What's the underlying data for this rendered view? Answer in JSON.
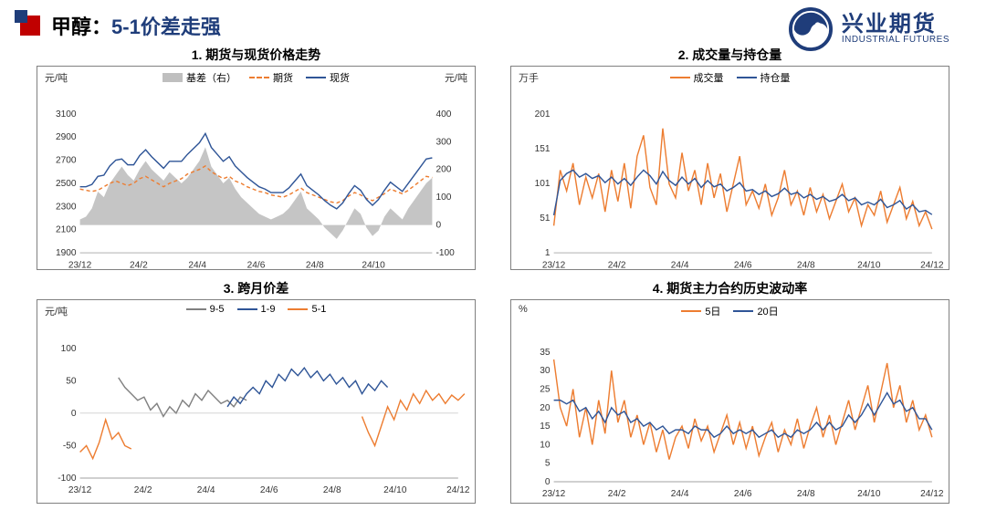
{
  "header": {
    "title_prefix": "甲醇：",
    "title_main": "5-1价差走强",
    "logo_cn": "兴业期货",
    "logo_en": "INDUSTRIAL FUTURES"
  },
  "colors": {
    "red": "#c00000",
    "navy": "#1f3d7a",
    "orange": "#ed7d31",
    "blue": "#2f5597",
    "gray_area": "#bfbfbf",
    "gray_line": "#808080",
    "border": "#808080",
    "text": "#333333"
  },
  "x_axis": {
    "labels": [
      "23/12",
      "24/2",
      "24/4",
      "24/6",
      "24/8",
      "24/10",
      "24/12"
    ],
    "full_len": 60
  },
  "chart1": {
    "title": "1. 期货与现货价格走势",
    "unit_left": "元/吨",
    "unit_right": "元/吨",
    "legend": [
      {
        "type": "area",
        "label": "基差（右）",
        "color": "#bfbfbf"
      },
      {
        "type": "dash",
        "label": "期货",
        "color": "#ed7d31"
      },
      {
        "type": "line",
        "label": "现货",
        "color": "#2f5597"
      }
    ],
    "y_left": {
      "min": 1900,
      "max": 3100,
      "step": 200
    },
    "y_right": {
      "min": -100,
      "max": 400,
      "step": 100
    },
    "series_basis_right": [
      20,
      30,
      60,
      120,
      100,
      150,
      180,
      210,
      180,
      160,
      200,
      230,
      200,
      180,
      160,
      190,
      170,
      150,
      170,
      200,
      230,
      280,
      210,
      180,
      150,
      170,
      130,
      100,
      80,
      60,
      40,
      30,
      20,
      30,
      40,
      60,
      90,
      120,
      60,
      40,
      20,
      -10,
      -30,
      -50,
      -20,
      20,
      60,
      40,
      -10,
      -40,
      -20,
      30,
      60,
      40,
      20,
      60,
      90,
      120,
      150,
      170
    ],
    "series_futures_left": [
      2450,
      2440,
      2430,
      2440,
      2470,
      2500,
      2520,
      2500,
      2480,
      2500,
      2540,
      2560,
      2530,
      2500,
      2470,
      2500,
      2520,
      2540,
      2580,
      2600,
      2620,
      2650,
      2600,
      2570,
      2540,
      2560,
      2520,
      2500,
      2470,
      2450,
      2430,
      2420,
      2400,
      2390,
      2380,
      2400,
      2430,
      2460,
      2420,
      2400,
      2380,
      2360,
      2340,
      2330,
      2350,
      2390,
      2420,
      2400,
      2370,
      2350,
      2380,
      2410,
      2450,
      2430,
      2410,
      2440,
      2480,
      2520,
      2560,
      2550
    ],
    "series_spot_left": [
      2470,
      2470,
      2490,
      2560,
      2570,
      2650,
      2700,
      2710,
      2660,
      2660,
      2740,
      2790,
      2730,
      2680,
      2630,
      2690,
      2690,
      2690,
      2750,
      2800,
      2850,
      2930,
      2810,
      2750,
      2690,
      2730,
      2650,
      2600,
      2550,
      2510,
      2470,
      2450,
      2420,
      2420,
      2420,
      2460,
      2520,
      2580,
      2480,
      2440,
      2400,
      2350,
      2310,
      2280,
      2330,
      2410,
      2480,
      2440,
      2360,
      2310,
      2360,
      2440,
      2510,
      2470,
      2430,
      2500,
      2570,
      2640,
      2710,
      2720
    ]
  },
  "chart2": {
    "title": "2. 成交量与持仓量",
    "unit_left": "万手",
    "legend": [
      {
        "type": "line",
        "label": "成交量",
        "color": "#ed7d31"
      },
      {
        "type": "line",
        "label": "持仓量",
        "color": "#2f5597"
      }
    ],
    "y_left": {
      "min": 1,
      "max": 201,
      "step": 50
    },
    "series_vol": [
      40,
      120,
      90,
      130,
      70,
      110,
      80,
      115,
      60,
      120,
      75,
      130,
      65,
      140,
      170,
      95,
      70,
      180,
      100,
      80,
      145,
      90,
      120,
      70,
      130,
      80,
      115,
      60,
      100,
      140,
      70,
      90,
      65,
      100,
      55,
      80,
      120,
      70,
      90,
      55,
      95,
      60,
      85,
      50,
      75,
      100,
      60,
      80,
      40,
      70,
      55,
      90,
      45,
      70,
      95,
      50,
      75,
      40,
      60,
      35
    ],
    "series_oi": [
      55,
      105,
      115,
      120,
      110,
      115,
      108,
      112,
      102,
      110,
      100,
      108,
      98,
      110,
      120,
      112,
      100,
      118,
      105,
      98,
      110,
      100,
      108,
      95,
      105,
      96,
      100,
      90,
      95,
      102,
      90,
      92,
      85,
      90,
      82,
      86,
      94,
      85,
      88,
      80,
      85,
      78,
      82,
      75,
      78,
      85,
      76,
      80,
      70,
      74,
      70,
      78,
      66,
      70,
      76,
      64,
      70,
      60,
      62,
      56
    ]
  },
  "chart3": {
    "title": "3. 跨月价差",
    "unit_left": "元/吨",
    "legend": [
      {
        "type": "line",
        "label": "9-5",
        "color": "#808080"
      },
      {
        "type": "line",
        "label": "1-9",
        "color": "#2f5597"
      },
      {
        "type": "line",
        "label": "5-1",
        "color": "#ed7d31"
      }
    ],
    "y_left": {
      "min": -100,
      "max": 100,
      "step": 50
    },
    "series_51": {
      "start": 0,
      "end": 8,
      "values": [
        -60,
        -50,
        -70,
        -45,
        -10,
        -40,
        -30,
        -50,
        -55
      ]
    },
    "series_51b": {
      "start": 44,
      "end": 60,
      "values": [
        -5,
        -30,
        -50,
        -20,
        10,
        -10,
        20,
        5,
        30,
        15,
        35,
        20,
        30,
        15,
        28,
        20,
        30
      ]
    },
    "series_95": {
      "start": 6,
      "end": 26,
      "values": [
        55,
        40,
        30,
        20,
        25,
        5,
        15,
        -5,
        10,
        0,
        20,
        10,
        30,
        20,
        35,
        25,
        15,
        20,
        10,
        25,
        20
      ]
    },
    "series_19": {
      "start": 23,
      "end": 48,
      "values": [
        10,
        25,
        15,
        30,
        40,
        30,
        50,
        40,
        60,
        50,
        68,
        58,
        70,
        55,
        65,
        50,
        60,
        45,
        55,
        40,
        50,
        30,
        45,
        35,
        50,
        40
      ]
    }
  },
  "chart4": {
    "title": "4. 期货主力合约历史波动率",
    "unit_left": "%",
    "legend": [
      {
        "type": "line",
        "label": "5日",
        "color": "#ed7d31"
      },
      {
        "type": "line",
        "label": "20日",
        "color": "#2f5597"
      }
    ],
    "y_left": {
      "min": 0,
      "max": 35,
      "step": 5
    },
    "series_5d": [
      33,
      20,
      15,
      25,
      12,
      20,
      10,
      22,
      13,
      30,
      16,
      22,
      12,
      18,
      10,
      16,
      8,
      14,
      6,
      12,
      15,
      9,
      17,
      11,
      15,
      8,
      13,
      18,
      10,
      16,
      9,
      15,
      7,
      12,
      16,
      8,
      14,
      10,
      17,
      9,
      15,
      20,
      12,
      18,
      10,
      16,
      22,
      14,
      20,
      26,
      16,
      24,
      32,
      20,
      26,
      16,
      22,
      14,
      18,
      12
    ],
    "series_20d": [
      22,
      22,
      21,
      22,
      19,
      20,
      17,
      19,
      16,
      20,
      18,
      19,
      16,
      17,
      15,
      16,
      14,
      15,
      13,
      14,
      14,
      13,
      15,
      14,
      14,
      12,
      13,
      15,
      13,
      14,
      13,
      14,
      12,
      13,
      14,
      12,
      13,
      12,
      14,
      13,
      14,
      16,
      14,
      16,
      14,
      15,
      18,
      16,
      18,
      21,
      18,
      21,
      24,
      21,
      22,
      19,
      20,
      17,
      17,
      14
    ]
  }
}
